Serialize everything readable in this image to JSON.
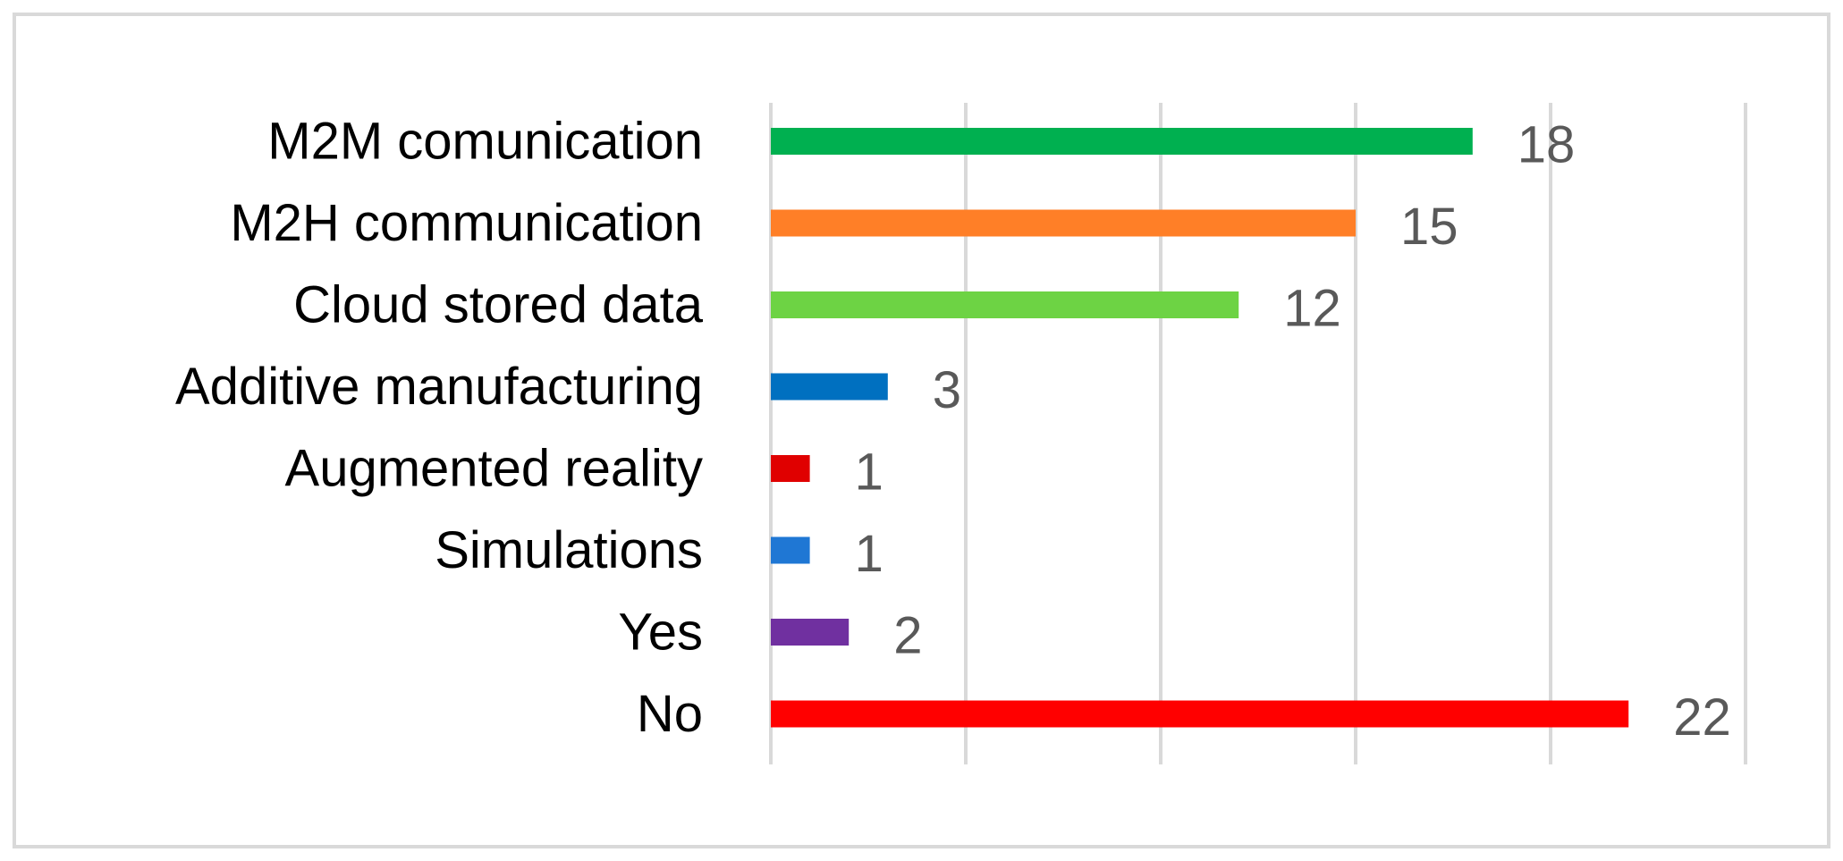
{
  "chart_data": {
    "type": "bar",
    "orientation": "horizontal",
    "title": "",
    "xlabel": "",
    "ylabel": "",
    "xlim": [
      0,
      25
    ],
    "grid": true,
    "legend": "none",
    "categories": [
      "M2M comunication",
      "M2H communication",
      "Cloud stored data",
      "Additive manufacturing",
      "Augmented reality",
      "Simulations",
      "Yes",
      "No"
    ],
    "values": [
      18,
      15,
      12,
      3,
      1,
      1,
      2,
      22
    ],
    "colors": [
      "#00b050",
      "#ff7f27",
      "#6dd344",
      "#0070c0",
      "#e00000",
      "#1f77d4",
      "#7030a0",
      "#ff0000"
    ]
  }
}
